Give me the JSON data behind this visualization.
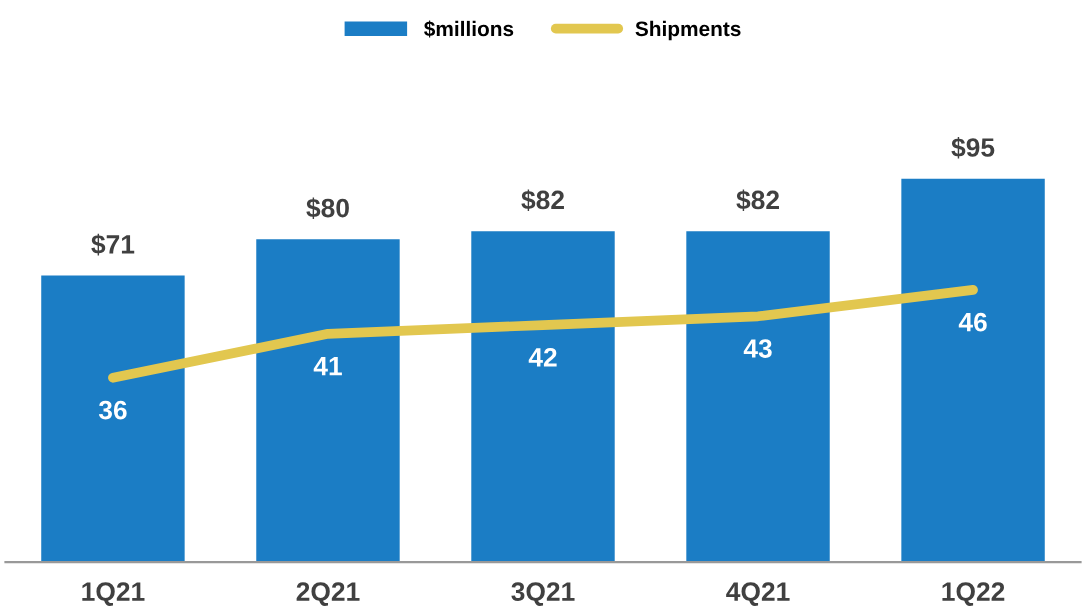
{
  "chart_data": {
    "type": "bar",
    "categories": [
      "1Q21",
      "2Q21",
      "3Q21",
      "4Q21",
      "1Q22"
    ],
    "series": [
      {
        "name": "$millions",
        "color": "#1b7dc5",
        "values": [
          71,
          80,
          82,
          82,
          95
        ],
        "value_labels": [
          "$71",
          "$80",
          "$82",
          "$82",
          "$95"
        ]
      },
      {
        "name": "Shipments",
        "type": "line",
        "axis": "y2",
        "color": "#e2c74f",
        "values": [
          36,
          41,
          42,
          43,
          46
        ],
        "value_labels": [
          "36",
          "41",
          "42",
          "43",
          "46"
        ]
      }
    ],
    "tick_labels": "x",
    "legend": "top",
    "grid": false,
    "marker": "none",
    "line_style": "solid"
  }
}
